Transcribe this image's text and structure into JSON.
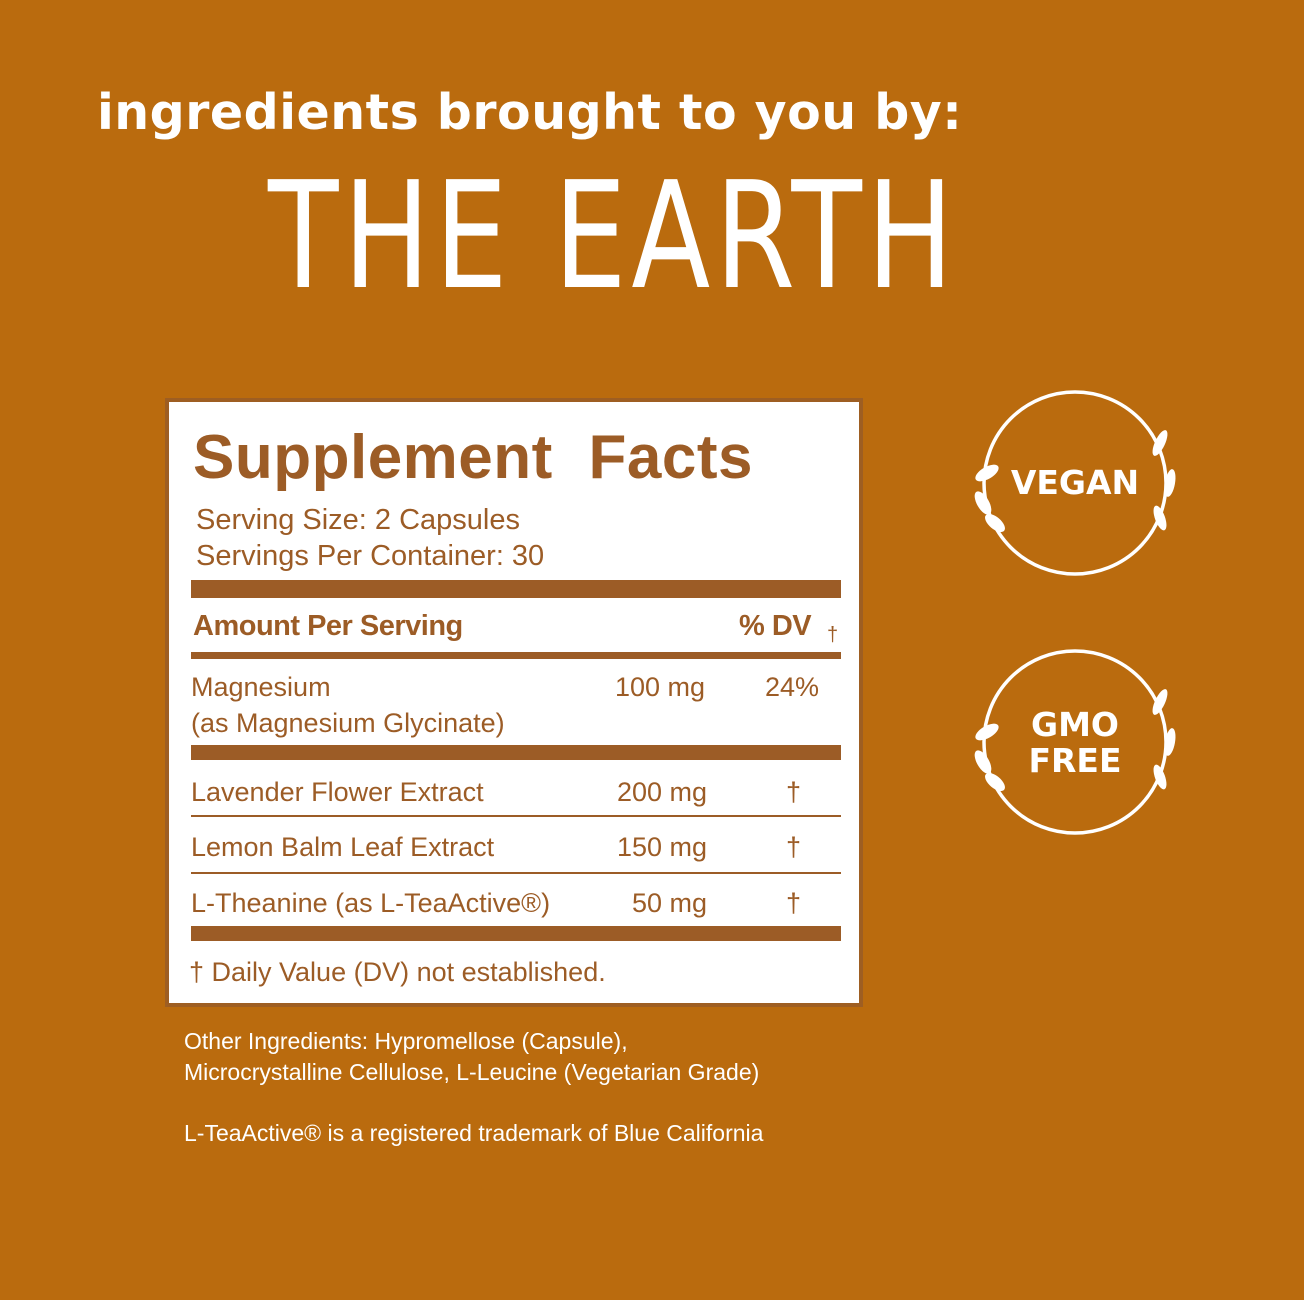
{
  "header": {
    "intro": "ingredients brought to you by:",
    "headline": "THE EARTH"
  },
  "label": {
    "title": "Supplement  Facts",
    "serving_size": "Serving Size: 2 Capsules",
    "servings_per_container": "Servings Per Container: 30",
    "amount_header": "Amount Per Serving",
    "dv_header": "% DV",
    "dv_mark": "†",
    "rows": [
      {
        "name": "Magnesium",
        "sub": "(as Magnesium Glycinate)",
        "amount": "100 mg",
        "dv": "24%"
      },
      {
        "name": "Lavender Flower Extract",
        "amount": "200 mg",
        "dv": "†"
      },
      {
        "name": "Lemon Balm Leaf Extract",
        "amount": "150 mg",
        "dv": "†"
      },
      {
        "name": "L-Theanine (as L-TeaActive®)",
        "amount": "50 mg",
        "dv": "†"
      }
    ],
    "footnote": "† Daily Value (DV) not established."
  },
  "other_ingredients": {
    "line1": "Other Ingredients: Hypromellose (Capsule),",
    "line2": "Microcrystalline Cellulose, L-Leucine (Vegetarian Grade)"
  },
  "trademark": "L-TeaActive® is a registered trademark of Blue California",
  "badges": [
    {
      "line1": "VEGAN",
      "icon": "laurel-wreath-icon"
    },
    {
      "line1": "GMO",
      "line2": "FREE",
      "icon": "laurel-wreath-icon"
    }
  ],
  "colors": {
    "background": "#BA6B0E",
    "label_text": "#9C5C26",
    "white": "#FFFFFF"
  }
}
